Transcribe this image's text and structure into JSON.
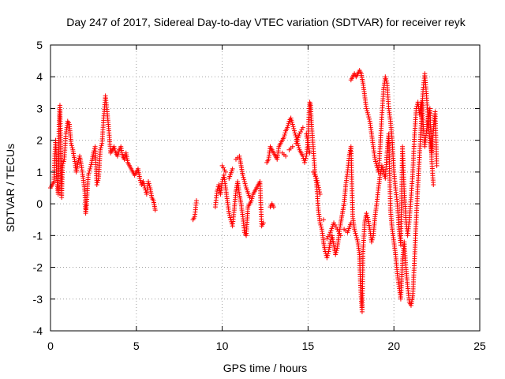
{
  "chart_data": {
    "type": "scatter",
    "title": "Day 247 of 2017, Sidereal Day-to-day VTEC variation (SDTVAR) for receiver reyk",
    "xlabel": "GPS time / hours",
    "ylabel": "SDTVAR / TECUs",
    "xlim": [
      0,
      25
    ],
    "ylim": [
      -4,
      5
    ],
    "xticks": [
      0,
      5,
      10,
      15,
      20,
      25
    ],
    "yticks": [
      -4,
      -3,
      -2,
      -1,
      0,
      1,
      2,
      3,
      4,
      5
    ],
    "grid": true,
    "marker": "+",
    "color": "#ff0000",
    "series": [
      {
        "name": "reyk",
        "points": [
          [
            0.0,
            0.5
          ],
          [
            0.1,
            0.6
          ],
          [
            0.2,
            0.7
          ],
          [
            0.25,
            1.5
          ],
          [
            0.3,
            2.0
          ],
          [
            0.35,
            1.0
          ],
          [
            0.4,
            0.6
          ],
          [
            0.45,
            0.3
          ],
          [
            0.5,
            2.5
          ],
          [
            0.55,
            3.1
          ],
          [
            0.6,
            1.8
          ],
          [
            0.65,
            0.2
          ],
          [
            0.7,
            1.2
          ],
          [
            0.8,
            1.4
          ],
          [
            0.9,
            2.2
          ],
          [
            1.0,
            2.6
          ],
          [
            1.1,
            2.5
          ],
          [
            1.2,
            1.9
          ],
          [
            1.3,
            1.7
          ],
          [
            1.4,
            1.4
          ],
          [
            1.5,
            1.0
          ],
          [
            1.6,
            1.3
          ],
          [
            1.7,
            1.5
          ],
          [
            1.8,
            1.2
          ],
          [
            1.9,
            0.8
          ],
          [
            2.0,
            0.4
          ],
          [
            2.05,
            -0.3
          ],
          [
            2.1,
            0.0
          ],
          [
            2.2,
            0.9
          ],
          [
            2.3,
            1.1
          ],
          [
            2.4,
            1.3
          ],
          [
            2.5,
            1.6
          ],
          [
            2.6,
            1.8
          ],
          [
            2.7,
            0.6
          ],
          [
            2.8,
            0.8
          ],
          [
            2.9,
            1.7
          ],
          [
            3.0,
            1.9
          ],
          [
            3.1,
            2.7
          ],
          [
            3.2,
            3.4
          ],
          [
            3.3,
            2.9
          ],
          [
            3.4,
            2.3
          ],
          [
            3.5,
            1.6
          ],
          [
            3.6,
            1.7
          ],
          [
            3.7,
            1.8
          ],
          [
            3.8,
            1.6
          ],
          [
            3.9,
            1.5
          ],
          [
            4.0,
            1.7
          ],
          [
            4.1,
            1.8
          ],
          [
            4.2,
            1.5
          ],
          [
            4.3,
            1.4
          ],
          [
            4.4,
            1.6
          ],
          [
            4.5,
            1.3
          ],
          [
            4.6,
            1.2
          ],
          [
            4.7,
            1.1
          ],
          [
            4.8,
            1.0
          ],
          [
            4.9,
            0.9
          ],
          [
            5.0,
            1.0
          ],
          [
            5.1,
            1.1
          ],
          [
            5.2,
            0.8
          ],
          [
            5.3,
            0.6
          ],
          [
            5.4,
            0.7
          ],
          [
            5.5,
            0.5
          ],
          [
            5.6,
            0.3
          ],
          [
            5.7,
            0.7
          ],
          [
            5.8,
            0.5
          ],
          [
            5.9,
            0.2
          ],
          [
            6.0,
            0.1
          ],
          [
            6.1,
            -0.2
          ],
          [
            8.3,
            -0.5
          ],
          [
            8.4,
            -0.4
          ],
          [
            8.5,
            0.1
          ],
          [
            9.6,
            -0.1
          ],
          [
            9.7,
            0.4
          ],
          [
            9.8,
            0.6
          ],
          [
            9.9,
            0.3
          ],
          [
            10.0,
            0.7
          ],
          [
            10.1,
            0.9
          ],
          [
            10.2,
            0.5
          ],
          [
            10.3,
            0.1
          ],
          [
            10.4,
            -0.3
          ],
          [
            10.5,
            -0.5
          ],
          [
            10.6,
            -0.7
          ],
          [
            10.7,
            -0.2
          ],
          [
            10.8,
            0.4
          ],
          [
            10.9,
            0.7
          ],
          [
            11.0,
            0.3
          ],
          [
            11.1,
            0.0
          ],
          [
            11.2,
            -0.4
          ],
          [
            11.3,
            -0.9
          ],
          [
            11.4,
            -1.0
          ],
          [
            11.5,
            -0.1
          ],
          [
            11.6,
            0.0
          ],
          [
            11.7,
            0.1
          ],
          [
            11.8,
            0.3
          ],
          [
            11.9,
            0.4
          ],
          [
            12.0,
            0.5
          ],
          [
            12.1,
            0.6
          ],
          [
            12.2,
            0.7
          ],
          [
            12.3,
            -0.7
          ],
          [
            12.4,
            -0.6
          ],
          [
            12.8,
            -0.1
          ],
          [
            12.9,
            0.0
          ],
          [
            13.0,
            -0.1
          ],
          [
            10.0,
            1.2
          ],
          [
            10.2,
            1.0
          ],
          [
            10.4,
            0.8
          ],
          [
            10.6,
            1.1
          ],
          [
            10.8,
            1.4
          ],
          [
            11.0,
            1.5
          ],
          [
            11.1,
            1.2
          ],
          [
            11.2,
            0.9
          ],
          [
            11.3,
            0.7
          ],
          [
            11.4,
            0.5
          ],
          [
            11.6,
            0.2
          ],
          [
            12.6,
            1.3
          ],
          [
            12.7,
            1.4
          ],
          [
            12.8,
            1.8
          ],
          [
            12.9,
            1.7
          ],
          [
            13.0,
            1.6
          ],
          [
            13.1,
            1.5
          ],
          [
            13.2,
            1.4
          ],
          [
            13.3,
            1.8
          ],
          [
            13.4,
            1.9
          ],
          [
            13.5,
            2.0
          ],
          [
            13.6,
            2.1
          ],
          [
            13.7,
            2.3
          ],
          [
            13.8,
            2.4
          ],
          [
            13.9,
            2.6
          ],
          [
            14.0,
            2.7
          ],
          [
            14.1,
            2.5
          ],
          [
            14.2,
            2.3
          ],
          [
            14.3,
            2.1
          ],
          [
            14.4,
            1.9
          ],
          [
            14.5,
            1.7
          ],
          [
            14.6,
            1.6
          ],
          [
            14.7,
            1.5
          ],
          [
            14.8,
            1.3
          ],
          [
            14.9,
            1.5
          ],
          [
            15.0,
            2.0
          ],
          [
            15.05,
            2.8
          ],
          [
            15.1,
            3.2
          ],
          [
            15.15,
            3.1
          ],
          [
            15.2,
            2.5
          ],
          [
            15.3,
            1.8
          ],
          [
            15.4,
            1.0
          ],
          [
            15.5,
            0.6
          ],
          [
            15.6,
            -0.2
          ],
          [
            15.7,
            -0.6
          ],
          [
            15.8,
            -0.8
          ],
          [
            15.9,
            -1.2
          ],
          [
            16.0,
            -1.5
          ],
          [
            16.1,
            -1.7
          ],
          [
            16.2,
            -1.5
          ],
          [
            16.3,
            -1.2
          ],
          [
            16.4,
            -1.0
          ],
          [
            16.5,
            -1.3
          ],
          [
            16.6,
            -1.6
          ],
          [
            16.7,
            -1.4
          ],
          [
            16.8,
            -1.0
          ],
          [
            16.9,
            -0.6
          ],
          [
            17.0,
            -0.3
          ],
          [
            17.1,
            0.0
          ],
          [
            17.2,
            0.6
          ],
          [
            17.3,
            1.0
          ],
          [
            17.4,
            1.5
          ],
          [
            17.5,
            1.8
          ],
          [
            17.6,
            -0.4
          ],
          [
            17.7,
            -0.8
          ],
          [
            17.8,
            -1.0
          ],
          [
            17.9,
            -1.2
          ],
          [
            18.0,
            -1.6
          ],
          [
            18.05,
            -2.5
          ],
          [
            18.1,
            -3.0
          ],
          [
            18.15,
            -3.4
          ],
          [
            18.2,
            -1.5
          ],
          [
            18.3,
            -0.6
          ],
          [
            18.4,
            -0.3
          ],
          [
            18.5,
            -0.5
          ],
          [
            18.6,
            -0.8
          ],
          [
            18.7,
            -1.2
          ],
          [
            18.8,
            -1.0
          ],
          [
            18.9,
            -0.4
          ],
          [
            19.0,
            0.0
          ],
          [
            19.1,
            0.5
          ],
          [
            19.2,
            0.9
          ],
          [
            19.3,
            1.2
          ],
          [
            19.4,
            1.0
          ],
          [
            19.5,
            0.8
          ],
          [
            19.6,
            1.6
          ],
          [
            19.7,
            2.2
          ],
          [
            19.8,
            -0.2
          ],
          [
            19.9,
            -0.8
          ],
          [
            20.0,
            -1.2
          ],
          [
            20.1,
            -1.6
          ],
          [
            20.2,
            -2.2
          ],
          [
            20.3,
            -2.6
          ],
          [
            20.4,
            -3.0
          ],
          [
            20.5,
            -1.8
          ],
          [
            20.6,
            -1.2
          ],
          [
            20.7,
            -2.0
          ],
          [
            20.8,
            -2.6
          ],
          [
            20.9,
            -3.1
          ],
          [
            21.0,
            -3.2
          ],
          [
            21.1,
            -2.9
          ],
          [
            21.2,
            -1.8
          ],
          [
            21.3,
            -0.5
          ],
          [
            21.4,
            0.6
          ],
          [
            21.5,
            1.6
          ],
          [
            21.6,
            2.6
          ],
          [
            21.7,
            3.6
          ],
          [
            21.8,
            4.1
          ],
          [
            21.9,
            3.4
          ],
          [
            22.0,
            2.6
          ],
          [
            22.1,
            2.0
          ],
          [
            22.2,
            1.6
          ],
          [
            22.3,
            2.3
          ],
          [
            22.4,
            2.9
          ],
          [
            22.5,
            1.2
          ],
          [
            13.5,
            1.6
          ],
          [
            13.7,
            1.5
          ],
          [
            13.9,
            1.7
          ],
          [
            14.1,
            1.8
          ],
          [
            14.3,
            1.9
          ],
          [
            14.5,
            2.2
          ],
          [
            14.7,
            2.4
          ],
          [
            14.9,
            2.2
          ],
          [
            15.1,
            1.6
          ],
          [
            15.3,
            1.0
          ],
          [
            15.5,
            0.8
          ],
          [
            15.7,
            0.3
          ],
          [
            15.9,
            -0.5
          ],
          [
            16.1,
            -1.1
          ],
          [
            16.3,
            -0.9
          ],
          [
            16.5,
            -0.6
          ],
          [
            16.7,
            -0.8
          ],
          [
            16.9,
            -1.0
          ],
          [
            17.1,
            -0.8
          ],
          [
            17.3,
            -0.9
          ],
          [
            17.5,
            -0.6
          ],
          [
            17.5,
            3.9
          ],
          [
            17.6,
            4.0
          ],
          [
            17.7,
            4.1
          ],
          [
            17.8,
            4.0
          ],
          [
            17.9,
            4.1
          ],
          [
            18.0,
            4.2
          ],
          [
            18.1,
            4.1
          ],
          [
            18.2,
            3.8
          ],
          [
            18.3,
            3.4
          ],
          [
            18.4,
            3.0
          ],
          [
            18.5,
            2.8
          ],
          [
            18.6,
            2.6
          ],
          [
            18.7,
            2.2
          ],
          [
            18.8,
            1.8
          ],
          [
            18.9,
            1.4
          ],
          [
            19.0,
            1.2
          ],
          [
            19.1,
            1.0
          ],
          [
            19.2,
            1.8
          ],
          [
            19.3,
            2.8
          ],
          [
            19.4,
            3.6
          ],
          [
            19.5,
            4.0
          ],
          [
            19.6,
            3.8
          ],
          [
            19.7,
            3.0
          ],
          [
            19.8,
            2.6
          ],
          [
            19.9,
            2.0
          ],
          [
            20.0,
            1.0
          ],
          [
            20.1,
            0.5
          ],
          [
            20.2,
            0.0
          ],
          [
            20.3,
            -0.8
          ],
          [
            20.4,
            -1.3
          ],
          [
            20.5,
            1.8
          ],
          [
            20.6,
            0.4
          ],
          [
            20.7,
            -0.5
          ],
          [
            20.8,
            -1.0
          ],
          [
            20.9,
            -0.5
          ],
          [
            21.0,
            0.2
          ],
          [
            21.1,
            1.0
          ],
          [
            21.2,
            2.1
          ],
          [
            21.3,
            3.0
          ],
          [
            21.4,
            3.2
          ],
          [
            21.5,
            2.8
          ],
          [
            21.6,
            3.2
          ],
          [
            21.7,
            2.5
          ],
          [
            21.8,
            1.8
          ],
          [
            21.9,
            2.3
          ],
          [
            22.0,
            2.7
          ],
          [
            22.1,
            3.0
          ],
          [
            22.2,
            1.4
          ],
          [
            22.3,
            0.6
          ]
        ]
      }
    ]
  }
}
